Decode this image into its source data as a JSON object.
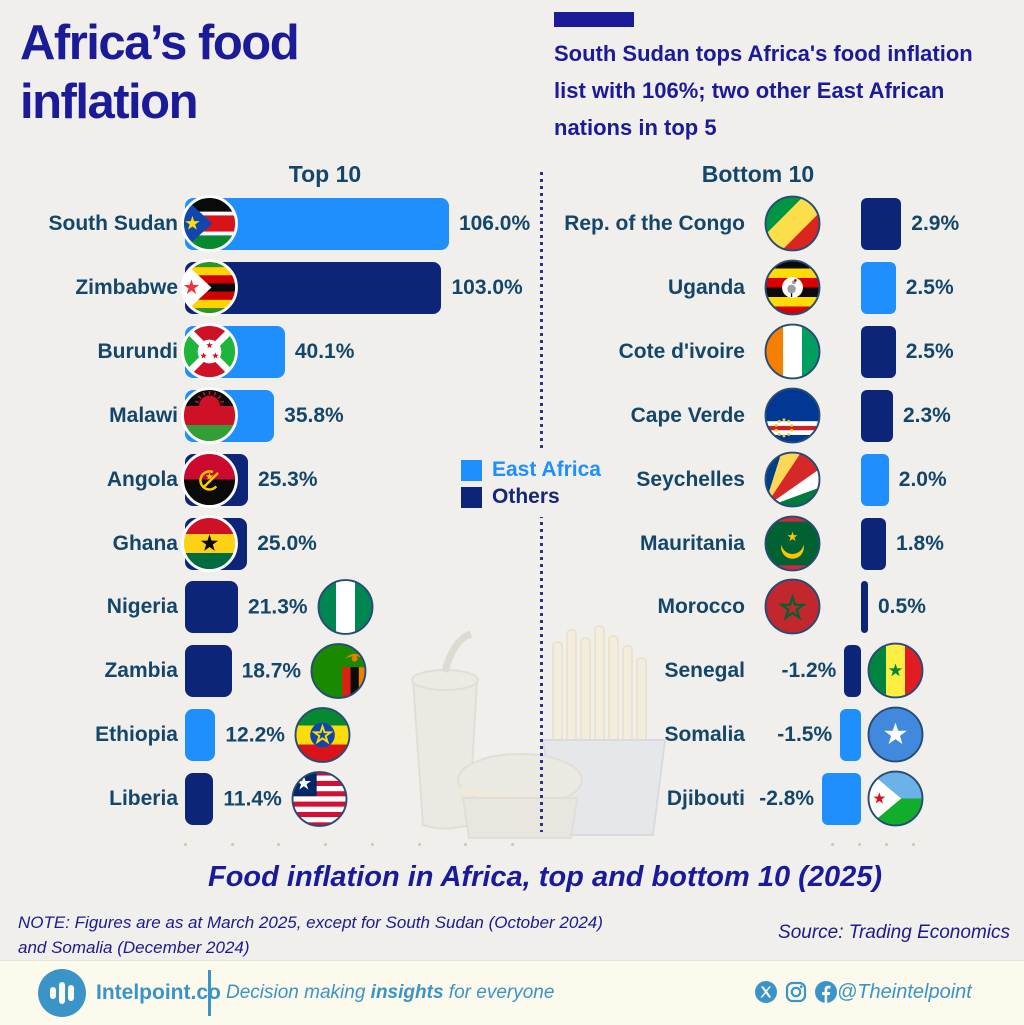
{
  "page": {
    "background": "#f0efeb"
  },
  "header": {
    "title_line1": "Africa’s food",
    "title_line2": "inflation",
    "headline": "South Sudan tops Africa's food inflation list with 106%; two other East African nations in top 5",
    "accent_color": "#1b1b99"
  },
  "legend": {
    "items": [
      {
        "label": "East Africa",
        "color": "#1e8ffd",
        "text_color": "#1e8ffd"
      },
      {
        "label": "Others",
        "color": "#0c2578",
        "text_color": "#14287a"
      }
    ]
  },
  "chart_data": {
    "type": "bar",
    "orientation": "horizontal",
    "unit": "percent",
    "series_colors": {
      "East Africa": "#1e8ffd",
      "Others": "#0c2578"
    },
    "groups": [
      {
        "title": "Top 10",
        "rows": [
          {
            "country": "South Sudan",
            "value": 106.0,
            "value_label": "106.0%",
            "region": "East Africa",
            "flag": "south-sudan",
            "flag_pos": "bar-start"
          },
          {
            "country": "Zimbabwe",
            "value": 103.0,
            "value_label": "103.0%",
            "region": "Others",
            "flag": "zimbabwe",
            "flag_pos": "bar-start"
          },
          {
            "country": "Burundi",
            "value": 40.1,
            "value_label": "40.1%",
            "region": "East Africa",
            "flag": "burundi",
            "flag_pos": "bar-start"
          },
          {
            "country": "Malawi",
            "value": 35.8,
            "value_label": "35.8%",
            "region": "East Africa",
            "flag": "malawi",
            "flag_pos": "bar-start"
          },
          {
            "country": "Angola",
            "value": 25.3,
            "value_label": "25.3%",
            "region": "Others",
            "flag": "angola",
            "flag_pos": "bar-start"
          },
          {
            "country": "Ghana",
            "value": 25.0,
            "value_label": "25.0%",
            "region": "Others",
            "flag": "ghana",
            "flag_pos": "bar-start"
          },
          {
            "country": "Nigeria",
            "value": 21.3,
            "value_label": "21.3%",
            "region": "Others",
            "flag": "nigeria",
            "flag_pos": "after-value"
          },
          {
            "country": "Zambia",
            "value": 18.7,
            "value_label": "18.7%",
            "region": "Others",
            "flag": "zambia",
            "flag_pos": "after-value"
          },
          {
            "country": "Ethiopia",
            "value": 12.2,
            "value_label": "12.2%",
            "region": "East Africa",
            "flag": "ethiopia",
            "flag_pos": "after-value"
          },
          {
            "country": "Liberia",
            "value": 11.4,
            "value_label": "11.4%",
            "region": "Others",
            "flag": "liberia",
            "flag_pos": "after-value"
          }
        ]
      },
      {
        "title": "Bottom 10",
        "rows": [
          {
            "country": "Rep. of the Congo",
            "value": 2.9,
            "value_label": "2.9%",
            "region": "Others",
            "flag": "rep-congo",
            "flag_pos": "before-bar"
          },
          {
            "country": "Uganda",
            "value": 2.5,
            "value_label": "2.5%",
            "region": "East Africa",
            "flag": "uganda",
            "flag_pos": "before-bar"
          },
          {
            "country": "Cote d'ivoire",
            "value": 2.5,
            "value_label": "2.5%",
            "region": "Others",
            "flag": "cote-divoire",
            "flag_pos": "before-bar"
          },
          {
            "country": "Cape Verde",
            "value": 2.3,
            "value_label": "2.3%",
            "region": "Others",
            "flag": "cape-verde",
            "flag_pos": "before-bar"
          },
          {
            "country": "Seychelles",
            "value": 2.0,
            "value_label": "2.0%",
            "region": "East Africa",
            "flag": "seychelles",
            "flag_pos": "before-bar"
          },
          {
            "country": "Mauritania",
            "value": 1.8,
            "value_label": "1.8%",
            "region": "Others",
            "flag": "mauritania",
            "flag_pos": "before-bar"
          },
          {
            "country": "Morocco",
            "value": 0.5,
            "value_label": "0.5%",
            "region": "Others",
            "flag": "morocco",
            "flag_pos": "before-bar"
          },
          {
            "country": "Senegal",
            "value": -1.2,
            "value_label": "-1.2%",
            "region": "Others",
            "flag": "senegal",
            "flag_pos": "after-bar"
          },
          {
            "country": "Somalia",
            "value": -1.5,
            "value_label": "-1.5%",
            "region": "East Africa",
            "flag": "somalia",
            "flag_pos": "after-bar"
          },
          {
            "country": "Djibouti",
            "value": -2.8,
            "value_label": "-2.8%",
            "region": "East Africa",
            "flag": "djibouti",
            "flag_pos": "after-bar"
          }
        ]
      }
    ]
  },
  "caption": "Food inflation in Africa, top and bottom 10 (2025)",
  "note": {
    "line1": "NOTE: Figures are as at March 2025, except for South Sudan (October 2024)",
    "line2": "and  Somalia (December 2024)"
  },
  "source": "Source: Trading Economics",
  "footer": {
    "brand": "Intelpoint.co",
    "tagline_pre": "Decision making ",
    "tagline_bold": "insights",
    "tagline_post": " for everyone",
    "handle": "@Theintelpoint",
    "icons": [
      "x-icon",
      "instagram-icon",
      "facebook-icon"
    ],
    "brand_color": "#3b94c8"
  }
}
